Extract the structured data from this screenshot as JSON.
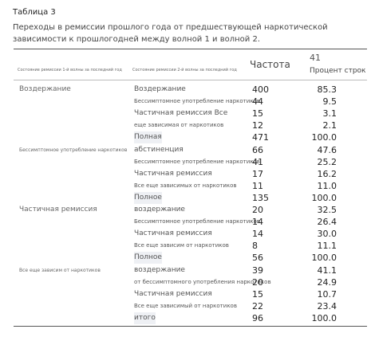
{
  "caption": "Таблица 3",
  "title": "Переходы в ремиссии прошлого года от предшествующей наркотической зависимости к прошлогодней между волной 1 и волной 2.",
  "table": {
    "header": [
      "Состояние ремиссии 1-й волны за последний год",
      "Состояние ремиссии 2-й волны за последний год",
      "Частота",
      "41",
      "Процент строк"
    ],
    "groups": [
      {
        "label": "Воздержание",
        "rows": [
          [
            "Воздержание",
            "400",
            "85.3"
          ],
          [
            "Бессимптомное употребление наркотиков",
            "44",
            "9.5"
          ],
          [
            "Частичная ремиссия Все",
            "15",
            "3.1"
          ],
          [
            "еще зависимая от наркотиков",
            "12",
            "2.1"
          ],
          [
            "Полная",
            "471",
            "100.0"
          ]
        ]
      },
      {
        "label": "Бессимптомное употребление наркотиков",
        "rows": [
          [
            "абстиненция",
            "66",
            "47.6"
          ],
          [
            "Бессимптомное употребление наркотиков",
            "41",
            "25.2"
          ],
          [
            "Частичная ремиссия",
            "17",
            "16.2"
          ],
          [
            "Все еще зависимых от наркотиков",
            "11",
            "11.0"
          ],
          [
            "Полное",
            "135",
            "100.0"
          ]
        ]
      },
      {
        "label": "Частичная ремиссия",
        "rows": [
          [
            "воздержание",
            "20",
            "32.5"
          ],
          [
            "Бессимптомное употребление наркотиков",
            "14",
            "26.4"
          ],
          [
            "Частичная ремиссия",
            "14",
            "30.0"
          ],
          [
            "Все еще зависим от наркотиков",
            "8",
            "11.1"
          ],
          [
            "Полное",
            "56",
            "100.0"
          ]
        ]
      },
      {
        "label": "Все еще зависим от наркотиков",
        "rows": [
          [
            "воздержание",
            "39",
            "41.1"
          ],
          [
            "от бессимптомного употребления наркотиков",
            "20",
            "24.9"
          ],
          [
            "Частичная ремиссия",
            "15",
            "10.7"
          ],
          [
            "Все еще зависимый от наркотиков",
            "22",
            "23.4"
          ],
          [
            "итого",
            "96",
            "100.0"
          ]
        ]
      }
    ]
  }
}
